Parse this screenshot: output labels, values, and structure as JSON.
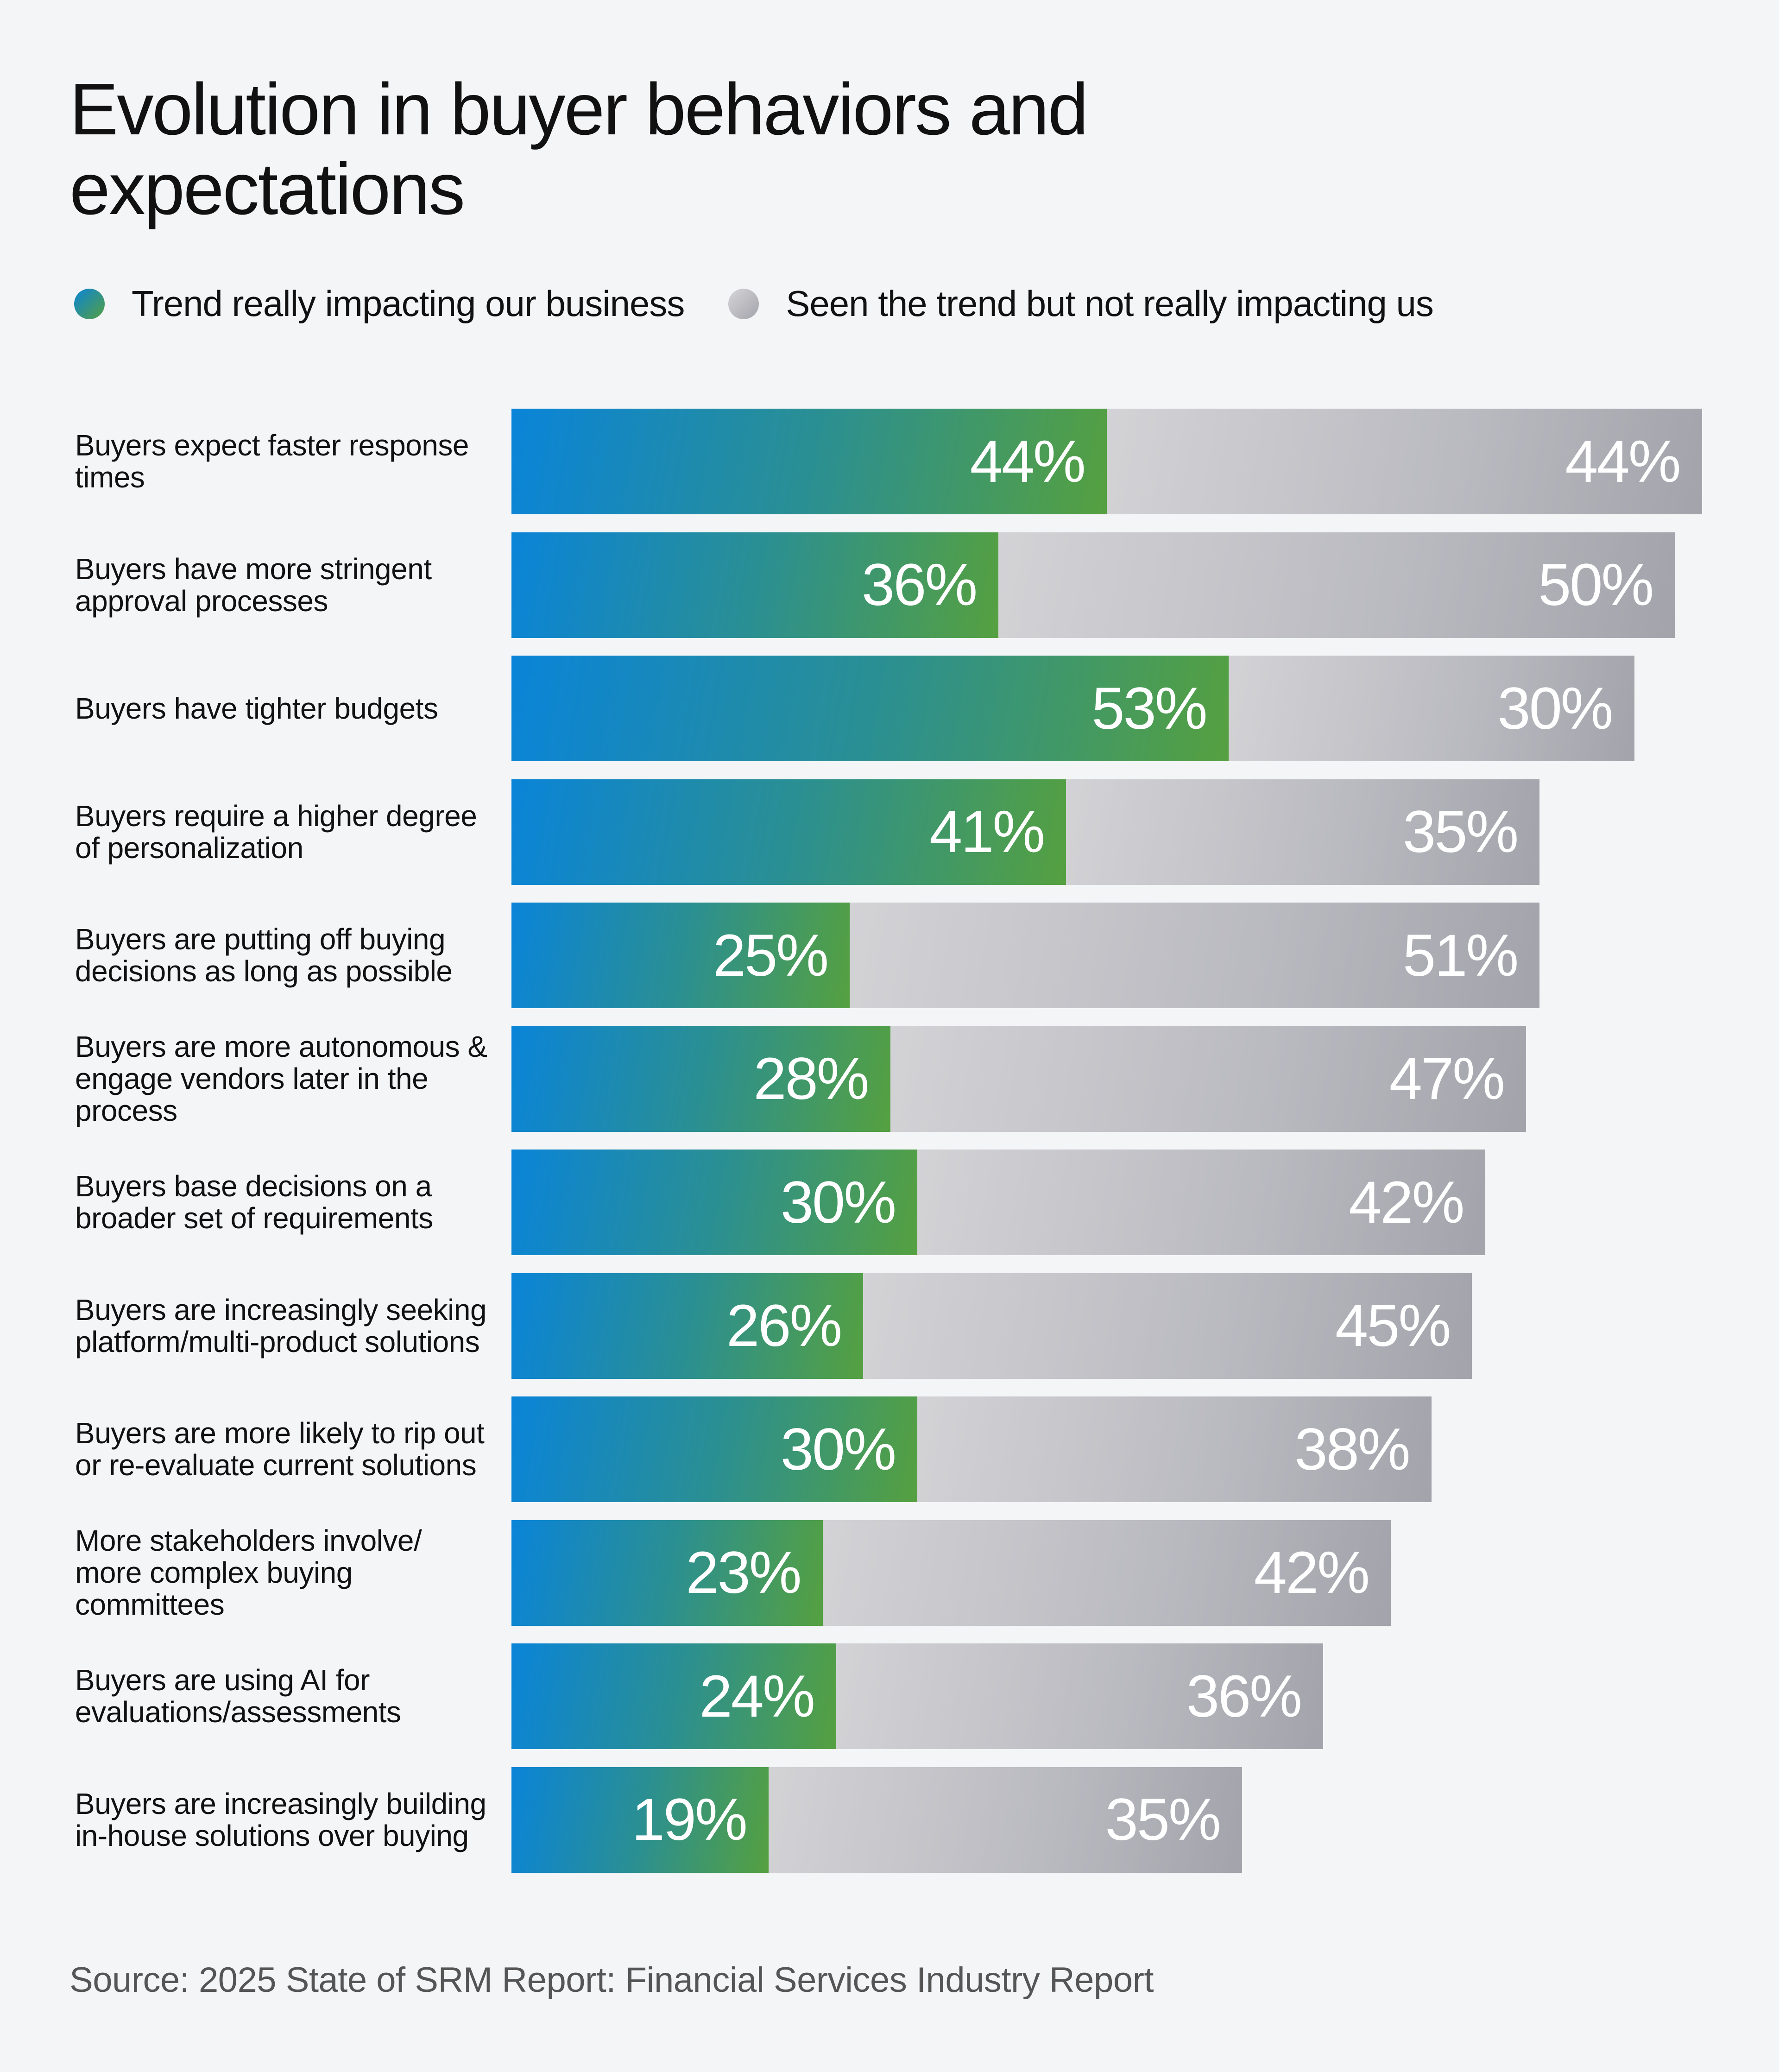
{
  "chart_data": {
    "type": "bar",
    "orientation": "horizontal",
    "stacked": true,
    "title": "Evolution in buyer behaviors and expectations",
    "legend_placement": "top-left",
    "grid": false,
    "categories": [
      "Buyers expect faster response times",
      "Buyers have more stringent approval processes",
      "Buyers have tighter budgets",
      "Buyers require a higher degree of personalization",
      "Buyers are putting off buying decisions as long as possible",
      "Buyers are more autonomous & engage vendors later in the process",
      "Buyers base decisions on a broader set of requirements",
      "Buyers are increasingly seeking platform/multi-product solutions",
      "Buyers are more likely to rip out or re-evaluate current solutions",
      "More stakeholders involve/ more complex buying committees",
      "Buyers are using AI for evaluations/assessments",
      "Buyers are increasingly building in-house solutions over buying"
    ],
    "series": [
      {
        "name": "Trend really impacting our business",
        "color": "#2a8f93",
        "gradient": [
          "#0a84d8",
          "#55a040"
        ],
        "values": [
          44,
          36,
          53,
          41,
          25,
          28,
          30,
          26,
          30,
          23,
          24,
          19
        ]
      },
      {
        "name": "Seen the trend but not really impacting us",
        "color": "#b9b9c0",
        "gradient": [
          "#d3d3d6",
          "#a3a3ab"
        ],
        "values": [
          44,
          50,
          30,
          35,
          51,
          47,
          42,
          45,
          38,
          42,
          36,
          35
        ]
      }
    ],
    "value_suffix": "%",
    "source": "Source: 2025 State of SRM Report: Financial Services Industry Report"
  }
}
